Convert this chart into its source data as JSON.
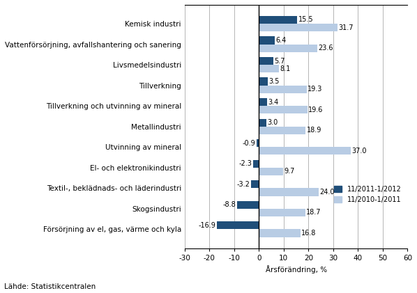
{
  "categories": [
    "Kemisk industri",
    "Vattenförsörjning, avfallshantering och sanering",
    "Livsmedelsindustri",
    "Tillverkning",
    "Tillverkning och utvinning av mineral",
    "Metallindustri",
    "Utvinning av mineral",
    "El- och elektronikindustri",
    "Textil-, beklädnads- och läderindustri",
    "Skogsindustri",
    "Försörjning av el, gas, värme och kyla"
  ],
  "values_2011_2012": [
    15.5,
    6.4,
    5.7,
    3.5,
    3.4,
    3.0,
    -0.9,
    -2.3,
    -3.2,
    -8.8,
    -16.9
  ],
  "values_2010_2011": [
    31.7,
    23.6,
    8.1,
    19.3,
    19.6,
    18.9,
    37.0,
    9.7,
    24.0,
    18.7,
    16.8
  ],
  "color_2011_2012": "#1f4e79",
  "color_2010_2011": "#b8cce4",
  "xlabel": "Årsförändring, %",
  "legend_2011_2012": "11/2011-1/2012",
  "legend_2010_2011": "11/2010-1/2011",
  "source": "Lähde: Statistikcentralen",
  "xlim": [
    -30,
    60
  ],
  "xticks": [
    -30,
    -20,
    -10,
    0,
    10,
    20,
    30,
    40,
    50,
    60
  ],
  "bar_height": 0.38,
  "label_fontsize": 7.0,
  "tick_fontsize": 7.5,
  "cat_fontsize": 7.5
}
